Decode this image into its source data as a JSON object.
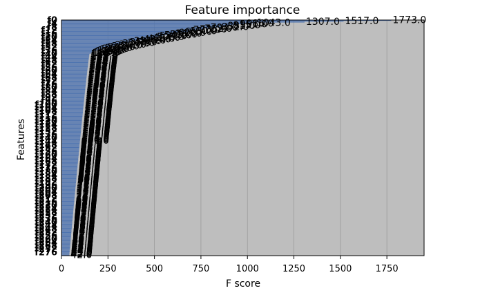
{
  "chart_data": {
    "type": "bar",
    "orientation": "horizontal",
    "title": "Feature importance",
    "xlabel": "F score",
    "ylabel": "Features",
    "xlim": [
      0,
      1950
    ],
    "xticks": [
      0,
      250,
      500,
      750,
      1000,
      1250,
      1500,
      1750
    ],
    "grid": true,
    "legend": "none",
    "bar_color": "#4c72b0",
    "bar_count_estimate": 280,
    "labeled_values": [
      1773.0,
      1517.0,
      1307.0,
      1043.0,
      986.0,
      951.0,
      915.0,
      885.0,
      852.0,
      794.0,
      762.0,
      735.0,
      700.0,
      680.0,
      655.0,
      620.0,
      600.0,
      575.0,
      545.0,
      520.0,
      505.0,
      484.0,
      455.0,
      434.0,
      406.0,
      382.0,
      359.0,
      347.0,
      320.0,
      301.0,
      280.0,
      262.0,
      241.0,
      226.0,
      210.0,
      198.0,
      186.0,
      175.0,
      166.0,
      158.0,
      150.0
    ],
    "top_value_labels": [
      "1307.0",
      "1517.0",
      "1773.0"
    ]
  },
  "colors": {
    "plot_background": "#bebebe",
    "grid": "#9a9a9a",
    "axis": "#000000"
  }
}
